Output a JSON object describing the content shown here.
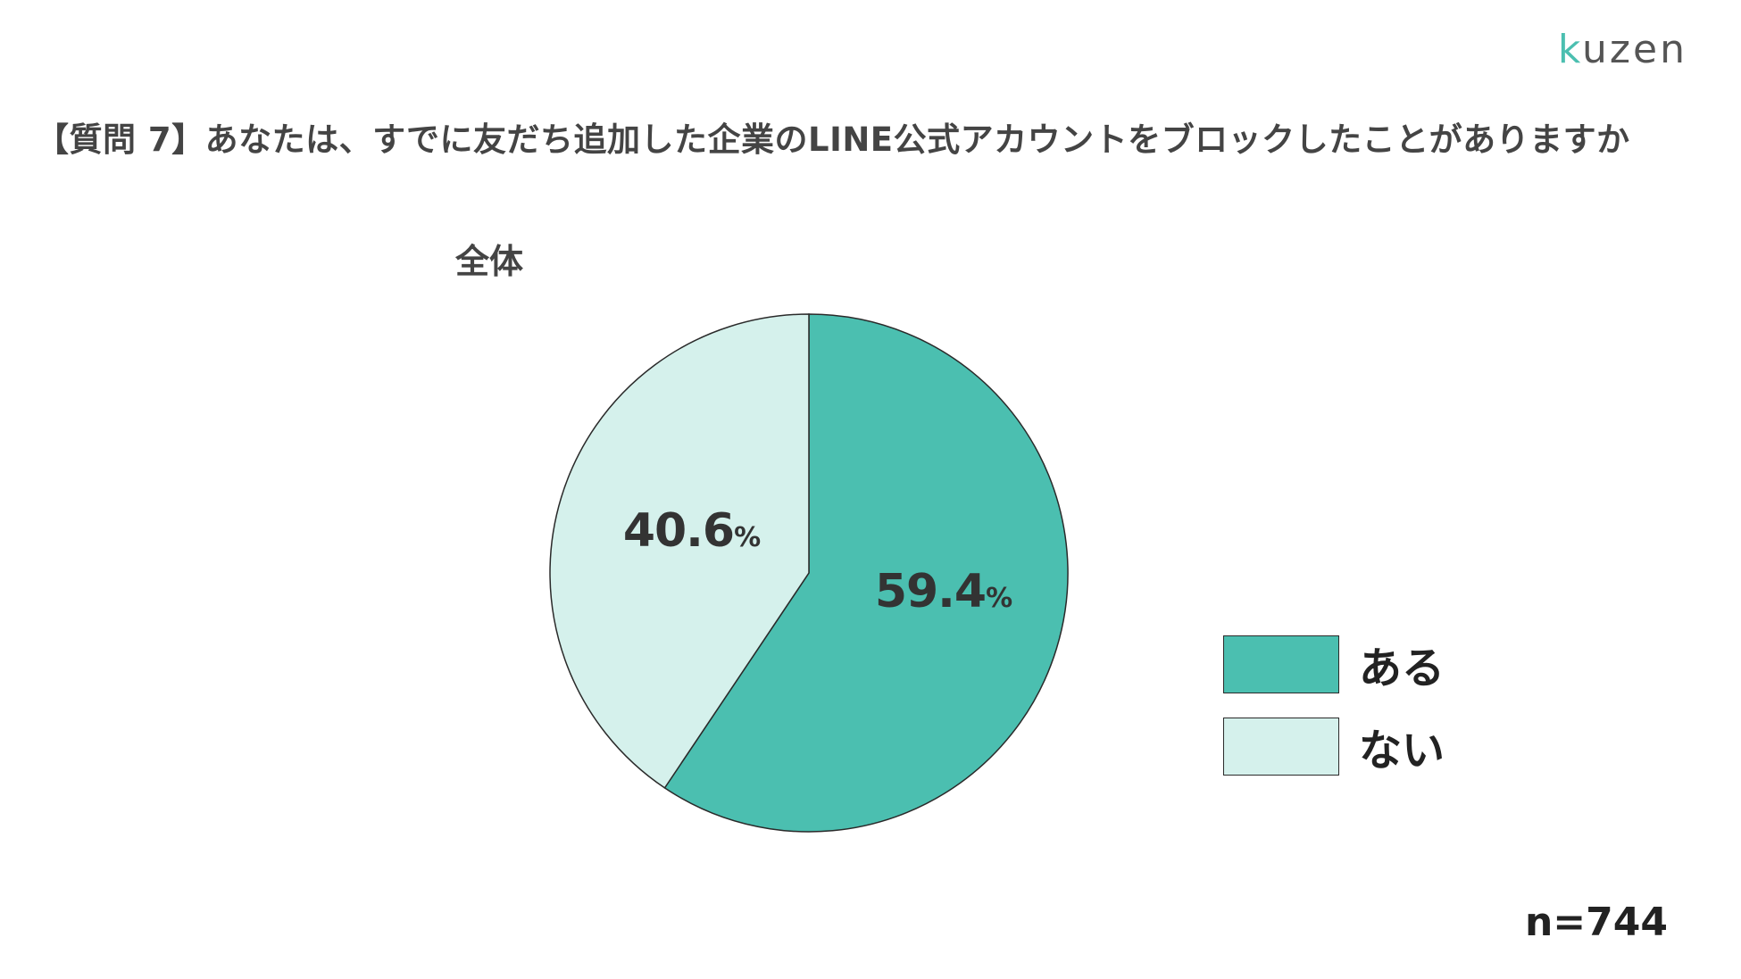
{
  "logo": {
    "k": "k",
    "rest": "uzen"
  },
  "header": {
    "title": "【質問 7】あなたは、すでに友だち追加した企業のLINE公式アカウントをブロックしたことがありますか"
  },
  "chart_data": {
    "type": "pie",
    "title": "全体",
    "slices": [
      {
        "label": "ある",
        "value": 59.4,
        "display": "59.4",
        "unit": "%",
        "color": "#4bbfb0"
      },
      {
        "label": "ない",
        "value": 40.6,
        "display": "40.6",
        "unit": "%",
        "color": "#d5f1ec"
      }
    ],
    "start": "12 o'clock",
    "direction": "clockwise",
    "legend_placement": "right",
    "sample_size": "n=744"
  }
}
